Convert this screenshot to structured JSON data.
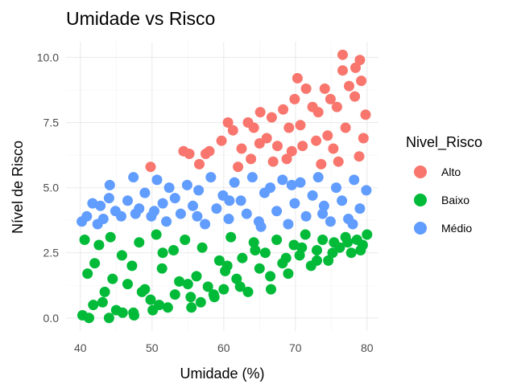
{
  "chart_data": {
    "type": "scatter",
    "title": "Umidade vs Risco",
    "xlabel": "Umidade (%)",
    "ylabel": "Nível de Risco",
    "xlim": [
      38.0,
      81.6
    ],
    "ylim": [
      -0.5,
      10.6
    ],
    "xticks": [
      40,
      50,
      60,
      70,
      80
    ],
    "yticks": [
      0.0,
      2.5,
      5.0,
      7.5,
      10.0
    ],
    "xtick_labels": [
      "40",
      "50",
      "60",
      "70",
      "80"
    ],
    "ytick_labels": [
      "0.0",
      "2.5",
      "5.0",
      "7.5",
      "10.0"
    ],
    "grid": true,
    "legend_title": "Nivel_Risco",
    "legend_position": "right",
    "series": [
      {
        "name": "Alto",
        "color": "#F8766D",
        "x": [
          49.8,
          54.4,
          55.2,
          56.6,
          58.0,
          59.7,
          61.3,
          62.5,
          63.4,
          64.2,
          65.1,
          66.0,
          66.7,
          67.5,
          68.3,
          69.1,
          69.9,
          70.7,
          71.5,
          72.4,
          73.2,
          74.1,
          74.9,
          75.8,
          76.6,
          77.5,
          78.3,
          79.0,
          79.8,
          76.6,
          78.4,
          79.2,
          70.3,
          74.5,
          65.0,
          60.6,
          57.5,
          72.9,
          68.8,
          77.0,
          78.9,
          75.3,
          71.0,
          63.8,
          66.9,
          73.6,
          79.5,
          62.0,
          69.5,
          76.0
        ],
        "y": [
          5.8,
          6.4,
          6.3,
          5.9,
          6.4,
          6.8,
          7.2,
          6.5,
          7.5,
          7.3,
          7.9,
          6.9,
          7.7,
          6.6,
          8.0,
          7.3,
          8.4,
          7.4,
          8.8,
          8.1,
          7.9,
          8.8,
          8.4,
          8.1,
          9.5,
          8.9,
          8.5,
          9.9,
          7.8,
          10.1,
          9.6,
          9.1,
          9.2,
          7.0,
          6.7,
          7.5,
          6.3,
          6.8,
          6.1,
          7.3,
          6.2,
          6.5,
          6.6,
          6.1,
          6.0,
          5.9,
          6.9,
          5.8,
          6.4,
          6.0
        ]
      },
      {
        "name": "Baixo",
        "color": "#00BA38",
        "x": [
          40.3,
          41.0,
          41.8,
          42.6,
          43.4,
          44.2,
          45.0,
          45.8,
          46.6,
          47.4,
          48.2,
          49.0,
          49.8,
          50.6,
          51.4,
          52.2,
          53.0,
          53.8,
          54.6,
          55.4,
          56.2,
          57.0,
          57.8,
          58.6,
          59.4,
          60.2,
          61.0,
          61.8,
          62.6,
          63.4,
          64.2,
          65.0,
          65.8,
          66.6,
          67.4,
          68.2,
          69.0,
          69.8,
          70.6,
          71.4,
          72.2,
          73.0,
          73.8,
          74.6,
          75.4,
          76.2,
          77.0,
          77.8,
          78.6,
          79.4,
          80.0,
          40.6,
          41.2,
          42.0,
          43.1,
          44.5,
          45.9,
          47.2,
          48.6,
          50.1,
          51.5,
          53.2,
          55.0,
          56.8,
          58.7,
          60.5,
          62.3,
          64.4,
          66.5,
          68.7,
          70.9,
          73.0,
          75.2,
          77.3,
          79.1,
          44.0,
          47.5,
          51.0,
          55.5,
          60.0
        ],
        "y": [
          0.1,
          1.7,
          0.5,
          2.8,
          1.0,
          3.1,
          0.3,
          2.4,
          1.3,
          0.2,
          2.9,
          1.1,
          0.7,
          3.2,
          1.9,
          0.4,
          2.6,
          1.4,
          3.0,
          0.8,
          1.6,
          2.7,
          1.2,
          0.9,
          2.2,
          1.8,
          3.1,
          1.5,
          2.3,
          1.0,
          2.9,
          1.9,
          2.5,
          1.1,
          3.0,
          2.1,
          1.7,
          2.8,
          2.4,
          3.2,
          2.0,
          2.6,
          3.0,
          2.2,
          2.9,
          2.7,
          3.1,
          2.5,
          3.0,
          2.8,
          3.2,
          3.0,
          0.0,
          2.1,
          0.6,
          1.5,
          0.2,
          2.0,
          1.0,
          0.3,
          2.5,
          0.9,
          1.3,
          0.6,
          0.8,
          2.0,
          1.2,
          2.6,
          1.6,
          2.3,
          2.7,
          2.2,
          2.5,
          2.9,
          2.6,
          0.0,
          0.1,
          0.5,
          0.4,
          1.1
        ]
      },
      {
        "name": "Médio",
        "color": "#619CFF",
        "x": [
          40.2,
          40.9,
          41.7,
          42.4,
          43.2,
          44.1,
          44.9,
          45.7,
          46.6,
          47.4,
          48.2,
          49.0,
          49.9,
          50.7,
          51.5,
          52.4,
          53.2,
          54.0,
          54.9,
          55.7,
          56.5,
          57.4,
          58.2,
          59.0,
          59.9,
          60.7,
          61.5,
          62.4,
          63.2,
          64.0,
          64.9,
          65.7,
          66.5,
          67.4,
          68.2,
          69.0,
          69.9,
          70.7,
          71.5,
          72.4,
          73.2,
          74.0,
          74.9,
          75.7,
          76.5,
          77.4,
          78.2,
          79.0,
          79.9,
          44.0,
          47.7,
          52.0,
          56.3,
          60.8,
          65.2,
          69.5,
          73.8,
          78.0,
          42.8,
          50.3
        ],
        "y": [
          3.7,
          3.9,
          4.4,
          3.6,
          3.8,
          5.1,
          4.1,
          3.9,
          4.5,
          5.4,
          4.2,
          4.8,
          3.9,
          5.3,
          4.4,
          5.0,
          4.6,
          4.0,
          5.1,
          4.3,
          4.9,
          3.6,
          5.4,
          4.2,
          4.7,
          3.8,
          5.2,
          4.5,
          4.0,
          5.4,
          3.7,
          4.8,
          5.0,
          4.1,
          5.3,
          3.6,
          4.4,
          5.2,
          3.9,
          4.7,
          5.4,
          4.3,
          3.7,
          5.0,
          4.5,
          3.8,
          5.3,
          4.2,
          4.9,
          4.6,
          4.0,
          3.7,
          3.9,
          4.5,
          3.5,
          5.1,
          4.0,
          3.6,
          4.3,
          4.1
        ]
      }
    ]
  }
}
